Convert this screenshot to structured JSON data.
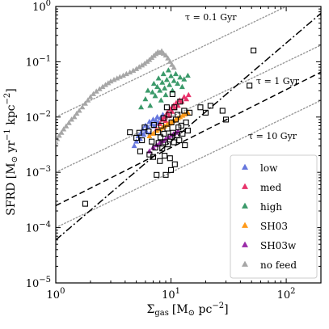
{
  "chart_data": {
    "type": "scatter",
    "x_scale": "log",
    "y_scale": "log",
    "xlim": [
      1,
      200
    ],
    "ylim": [
      1e-05,
      1
    ],
    "x_major_ticks": [
      {
        "value": 1,
        "mantissa": "10",
        "exp": "0"
      },
      {
        "value": 10,
        "mantissa": "10",
        "exp": "1"
      },
      {
        "value": 100,
        "mantissa": "10",
        "exp": "2"
      }
    ],
    "y_major_ticks": [
      {
        "value": 1e-05,
        "mantissa": "10",
        "exp": "−5"
      },
      {
        "value": 0.0001,
        "mantissa": "10",
        "exp": "−4"
      },
      {
        "value": 0.001,
        "mantissa": "10",
        "exp": "−3"
      },
      {
        "value": 0.01,
        "mantissa": "10",
        "exp": "−2"
      },
      {
        "value": 0.1,
        "mantissa": "10",
        "exp": "−1"
      },
      {
        "value": 1,
        "mantissa": "10",
        "exp": "0"
      }
    ],
    "xlabel": {
      "sym": "Σ",
      "sub": "gas",
      "unit": "[M",
      "sun": "⊙",
      "unit2": " pc",
      "exp": "−2",
      "close": "]"
    },
    "ylabel": {
      "main": "SFRD [M",
      "sun": "⊙",
      "yr": " yr",
      "exp1": "−1",
      "kpc": " kpc",
      "exp2": "−2",
      "close": "]"
    },
    "reference_lines": [
      {
        "label": "τ = 0.1 Gyr",
        "tau_gyr": 0.1
      },
      {
        "label": "τ = 1 Gyr",
        "tau_gyr": 1
      },
      {
        "label": "τ = 10 Gyr",
        "tau_gyr": 10
      }
    ],
    "fit_lines": [
      {
        "style": "dashed",
        "points": [
          [
            1,
            0.00025
          ],
          [
            200,
            0.065
          ]
        ]
      },
      {
        "style": "dashdot",
        "points": [
          [
            1,
            6e-05
          ],
          [
            200,
            0.75
          ]
        ]
      }
    ],
    "observations": {
      "marker": "open-square",
      "points": [
        [
          1.8,
          0.00027
        ],
        [
          4.4,
          0.0053
        ],
        [
          5.0,
          0.0042
        ],
        [
          5.3,
          0.0052
        ],
        [
          5.4,
          0.0024
        ],
        [
          5.6,
          0.0038
        ],
        [
          5.9,
          0.0065
        ],
        [
          6.4,
          0.0055
        ],
        [
          6.5,
          0.0021
        ],
        [
          6.8,
          0.0036
        ],
        [
          7.1,
          0.0072
        ],
        [
          7.0,
          0.0019
        ],
        [
          7.3,
          0.0028
        ],
        [
          7.5,
          0.0009
        ],
        [
          7.7,
          0.0053
        ],
        [
          7.8,
          0.0034
        ],
        [
          8.0,
          0.0016
        ],
        [
          8.2,
          0.007
        ],
        [
          8.1,
          0.0043
        ],
        [
          8.4,
          0.0027
        ],
        [
          8.6,
          0.0096
        ],
        [
          8.7,
          0.005
        ],
        [
          8.8,
          0.002
        ],
        [
          8.9,
          0.0035
        ],
        [
          9.2,
          0.015
        ],
        [
          9.3,
          0.0062
        ],
        [
          9.4,
          0.0032
        ],
        [
          9.6,
          0.011
        ],
        [
          9.8,
          0.0018
        ],
        [
          9.9,
          0.0044
        ],
        [
          10.1,
          0.008
        ],
        [
          10.3,
          0.026
        ],
        [
          10.4,
          0.0052
        ],
        [
          10.6,
          0.0035
        ],
        [
          10.7,
          0.015
        ],
        [
          10.8,
          0.0014
        ],
        [
          11.0,
          0.009
        ],
        [
          11.2,
          0.0047
        ],
        [
          11.4,
          0.011
        ],
        [
          11.6,
          0.0065
        ],
        [
          11.8,
          0.0038
        ],
        [
          12.0,
          0.019
        ],
        [
          12.3,
          0.007
        ],
        [
          12.6,
          0.005
        ],
        [
          13.0,
          0.013
        ],
        [
          13.2,
          0.0031
        ],
        [
          13.5,
          0.008
        ],
        [
          14.0,
          0.0057
        ],
        [
          14.5,
          0.012
        ],
        [
          9.0,
          0.0009
        ],
        [
          10.0,
          0.0011
        ],
        [
          18.0,
          0.015
        ],
        [
          20.0,
          0.012
        ],
        [
          22.0,
          0.016
        ],
        [
          28.0,
          0.013
        ],
        [
          30.0,
          0.009
        ],
        [
          48.0,
          0.037
        ],
        [
          52.0,
          0.16
        ]
      ]
    },
    "series": [
      {
        "name": "low",
        "color": "#6677dd",
        "points": [
          [
            4.8,
            0.003
          ],
          [
            5.0,
            0.0036
          ],
          [
            5.2,
            0.0045
          ],
          [
            5.4,
            0.004
          ],
          [
            5.5,
            0.0052
          ],
          [
            5.7,
            0.006
          ],
          [
            5.8,
            0.0048
          ],
          [
            6.0,
            0.007
          ],
          [
            6.1,
            0.0055
          ],
          [
            6.3,
            0.0065
          ],
          [
            6.5,
            0.0082
          ],
          [
            6.6,
            0.005
          ],
          [
            6.8,
            0.0075
          ],
          [
            7.0,
            0.009
          ],
          [
            7.2,
            0.0068
          ],
          [
            7.4,
            0.0085
          ],
          [
            7.6,
            0.01
          ],
          [
            7.8,
            0.0078
          ],
          [
            8.1,
            0.0095
          ],
          [
            8.5,
            0.011
          ]
        ]
      },
      {
        "name": "med",
        "color": "#e8336b",
        "points": [
          [
            7.5,
            0.006
          ],
          [
            8.0,
            0.0075
          ],
          [
            8.4,
            0.009
          ],
          [
            8.8,
            0.01
          ],
          [
            9.0,
            0.0085
          ],
          [
            9.3,
            0.012
          ],
          [
            9.6,
            0.0105
          ],
          [
            9.9,
            0.014
          ],
          [
            10.2,
            0.0125
          ],
          [
            10.5,
            0.016
          ],
          [
            10.8,
            0.0145
          ],
          [
            11.1,
            0.018
          ],
          [
            11.5,
            0.016
          ],
          [
            11.9,
            0.02
          ],
          [
            12.4,
            0.019
          ],
          [
            13.0,
            0.023
          ],
          [
            13.6,
            0.021
          ],
          [
            14.2,
            0.025
          ]
        ]
      },
      {
        "name": "high",
        "color": "#3b9a6a",
        "points": [
          [
            5.5,
            0.015
          ],
          [
            6.0,
            0.021
          ],
          [
            6.3,
            0.03
          ],
          [
            6.6,
            0.016
          ],
          [
            6.9,
            0.028
          ],
          [
            7.1,
            0.04
          ],
          [
            7.3,
            0.024
          ],
          [
            7.6,
            0.035
          ],
          [
            7.8,
            0.05
          ],
          [
            8.0,
            0.03
          ],
          [
            8.2,
            0.02
          ],
          [
            8.4,
            0.042
          ],
          [
            8.6,
            0.06
          ],
          [
            8.8,
            0.033
          ],
          [
            9.0,
            0.025
          ],
          [
            9.2,
            0.047
          ],
          [
            9.5,
            0.07
          ],
          [
            9.7,
            0.038
          ],
          [
            10.0,
            0.055
          ],
          [
            10.3,
            0.03
          ],
          [
            10.6,
            0.045
          ],
          [
            11.0,
            0.06
          ],
          [
            11.4,
            0.04
          ],
          [
            12.0,
            0.052
          ],
          [
            12.5,
            0.035
          ],
          [
            13.0,
            0.048
          ],
          [
            14.0,
            0.056
          ]
        ]
      },
      {
        "name": "SH03",
        "color": "#ff9a1a",
        "points": [
          [
            6.5,
            0.0045
          ],
          [
            7.0,
            0.005
          ],
          [
            7.5,
            0.0056
          ],
          [
            8.0,
            0.006
          ],
          [
            8.4,
            0.0064
          ],
          [
            8.8,
            0.0068
          ],
          [
            9.2,
            0.0072
          ],
          [
            9.6,
            0.0076
          ],
          [
            10.0,
            0.008
          ],
          [
            10.5,
            0.0085
          ],
          [
            11.0,
            0.009
          ],
          [
            11.5,
            0.0095
          ],
          [
            12.0,
            0.01
          ],
          [
            12.6,
            0.0106
          ],
          [
            13.2,
            0.0112
          ],
          [
            14.0,
            0.012
          ]
        ]
      },
      {
        "name": "SH03w",
        "color": "#9a2aa8",
        "points": [
          [
            6.5,
            0.0024
          ],
          [
            7.0,
            0.0028
          ],
          [
            7.5,
            0.0031
          ],
          [
            8.0,
            0.0034
          ],
          [
            8.5,
            0.0037
          ],
          [
            9.0,
            0.004
          ],
          [
            9.5,
            0.0043
          ],
          [
            10.0,
            0.0046
          ],
          [
            10.5,
            0.0049
          ],
          [
            11.0,
            0.0052
          ],
          [
            11.5,
            0.0055
          ]
        ]
      },
      {
        "name": "no feed",
        "color": "#a6a6a6",
        "points": [
          [
            1.0,
            0.0035
          ],
          [
            1.03,
            0.004
          ],
          [
            1.07,
            0.0046
          ],
          [
            1.12,
            0.0052
          ],
          [
            1.17,
            0.006
          ],
          [
            1.23,
            0.0068
          ],
          [
            1.3,
            0.0078
          ],
          [
            1.37,
            0.009
          ],
          [
            1.45,
            0.01
          ],
          [
            1.52,
            0.0115
          ],
          [
            1.6,
            0.013
          ],
          [
            1.7,
            0.015
          ],
          [
            1.8,
            0.0175
          ],
          [
            1.9,
            0.02
          ],
          [
            2.0,
            0.023
          ],
          [
            2.12,
            0.026
          ],
          [
            2.25,
            0.029
          ],
          [
            2.4,
            0.032
          ],
          [
            2.55,
            0.035
          ],
          [
            2.7,
            0.038
          ],
          [
            2.85,
            0.041
          ],
          [
            3.0,
            0.044
          ],
          [
            3.2,
            0.047
          ],
          [
            3.4,
            0.05
          ],
          [
            3.6,
            0.053
          ],
          [
            3.85,
            0.056
          ],
          [
            4.1,
            0.06
          ],
          [
            4.4,
            0.064
          ],
          [
            4.7,
            0.069
          ],
          [
            5.0,
            0.074
          ],
          [
            5.3,
            0.08
          ],
          [
            5.6,
            0.086
          ],
          [
            5.9,
            0.092
          ],
          [
            6.2,
            0.1
          ],
          [
            6.5,
            0.108
          ],
          [
            6.8,
            0.118
          ],
          [
            7.1,
            0.128
          ],
          [
            7.4,
            0.138
          ],
          [
            7.7,
            0.15
          ],
          [
            8.0,
            0.145
          ],
          [
            8.3,
            0.155
          ],
          [
            8.6,
            0.14
          ],
          [
            9.0,
            0.13
          ],
          [
            9.4,
            0.115
          ],
          [
            9.8,
            0.1
          ],
          [
            10.2,
            0.088
          ],
          [
            10.6,
            0.078
          ]
        ]
      }
    ],
    "legend": {
      "placement": "lower-right",
      "entries": [
        "low",
        "med",
        "high",
        "SH03",
        "SH03w",
        "no feed"
      ]
    }
  }
}
